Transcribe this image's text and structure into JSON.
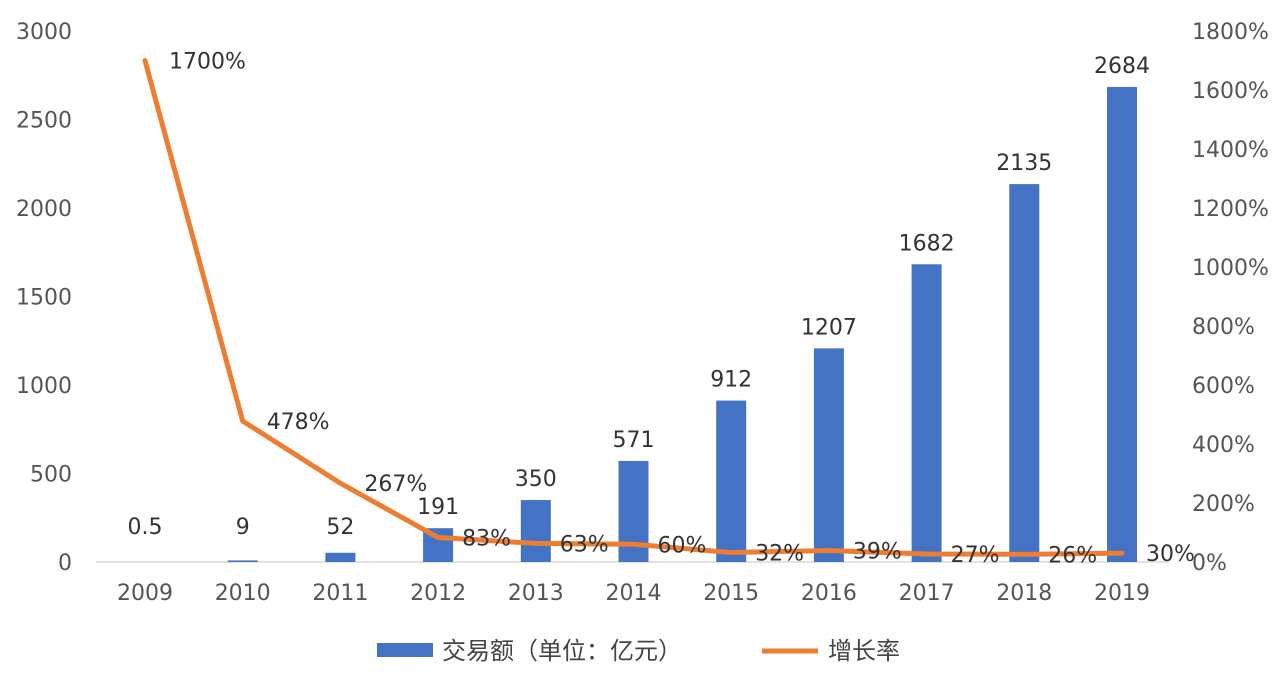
{
  "chart_data": {
    "type": "bar",
    "categories": [
      "2009",
      "2010",
      "2011",
      "2012",
      "2013",
      "2014",
      "2015",
      "2016",
      "2017",
      "2018",
      "2019"
    ],
    "series": [
      {
        "name": "交易额（单位：亿元）",
        "chart_type": "bar",
        "axis": "left",
        "color": "#4472C4",
        "values": [
          0.5,
          9,
          52,
          191,
          350,
          571,
          912,
          1207,
          1682,
          2135,
          2684
        ],
        "labels": [
          "0.5",
          "9",
          "52",
          "191",
          "350",
          "571",
          "912",
          "1207",
          "1682",
          "2135",
          "2684"
        ]
      },
      {
        "name": "增长率",
        "chart_type": "line",
        "axis": "right",
        "color": "#ED7D31",
        "values": [
          1700,
          478,
          267,
          83,
          63,
          60,
          32,
          39,
          27,
          26,
          30
        ],
        "labels": [
          "1700%",
          "478%",
          "267%",
          "83%",
          "63%",
          "60%",
          "32%",
          "39%",
          "27%",
          "26%",
          "30%"
        ]
      }
    ],
    "y_left": {
      "min": 0,
      "max": 3000,
      "ticks": [
        "0",
        "500",
        "1000",
        "1500",
        "2000",
        "2500",
        "3000"
      ]
    },
    "y_right": {
      "min": 0,
      "max": 1800,
      "ticks": [
        "0%",
        "200%",
        "400%",
        "600%",
        "800%",
        "1000%",
        "1200%",
        "1400%",
        "1600%",
        "1800%"
      ]
    },
    "grid": false,
    "legend_position": "bottom"
  }
}
